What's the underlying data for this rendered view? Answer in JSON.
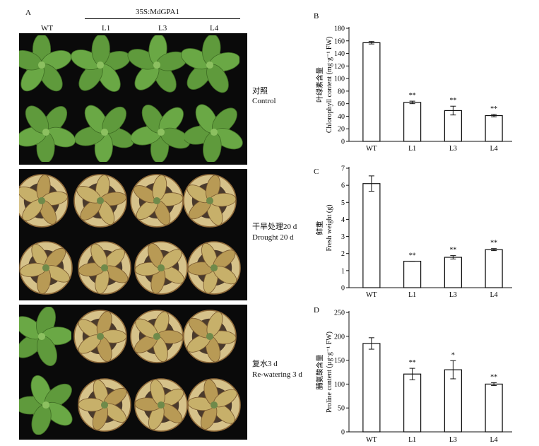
{
  "figure": {
    "panel_a": "A",
    "construct": "35S:MdGPA1",
    "columns": [
      "WT",
      "L1",
      "L3",
      "L4"
    ],
    "rows": [
      {
        "zh": "对照",
        "en": "Control"
      },
      {
        "zh": "干旱处理20 d",
        "en": "Drought 20 d"
      },
      {
        "zh": "复水3 d",
        "en": "Re-watering 3 d"
      }
    ],
    "colors": {
      "healthy_leaf": "#5f9a3c",
      "stressed_leaf": "#c7b06a",
      "pot_soil": "#4a3a2c",
      "background": "#0a0a0a"
    }
  },
  "chart_data": [
    {
      "panel": "B",
      "type": "bar",
      "categories": [
        "WT",
        "L1",
        "L3",
        "L4"
      ],
      "values": [
        157,
        62,
        49,
        41
      ],
      "errors": [
        2,
        2,
        7,
        2
      ],
      "significance": [
        "",
        "**",
        "**",
        "**"
      ],
      "ylabel_zh": "叶绿素含量",
      "ylabel_en": "Chlorophyll content (mg·g⁻¹ FW)",
      "ylim": [
        0,
        180
      ],
      "yticks": [
        0,
        20,
        40,
        60,
        80,
        100,
        120,
        140,
        160,
        180
      ]
    },
    {
      "panel": "C",
      "type": "bar",
      "categories": [
        "WT",
        "L1",
        "L3",
        "L4"
      ],
      "values": [
        6.1,
        1.55,
        1.78,
        2.23
      ],
      "errors": [
        0.45,
        0.0,
        0.1,
        0.06
      ],
      "significance": [
        "",
        "**",
        "**",
        "**"
      ],
      "ylabel_zh": "鲜重",
      "ylabel_en": "Fresh weight (g)",
      "ylim": [
        0,
        7
      ],
      "yticks": [
        0,
        1,
        2,
        3,
        4,
        5,
        6,
        7
      ]
    },
    {
      "panel": "D",
      "type": "bar",
      "categories": [
        "WT",
        "L1",
        "L3",
        "L4"
      ],
      "values": [
        185,
        121,
        130,
        100
      ],
      "errors": [
        12,
        12,
        19,
        3
      ],
      "significance": [
        "",
        "**",
        "*",
        "**"
      ],
      "ylabel_zh": "脯氨酸含量",
      "ylabel_en": "Proline content (µg·g⁻¹ FW)",
      "ylim": [
        0,
        250
      ],
      "yticks": [
        0,
        50,
        100,
        150,
        200,
        250
      ]
    }
  ]
}
